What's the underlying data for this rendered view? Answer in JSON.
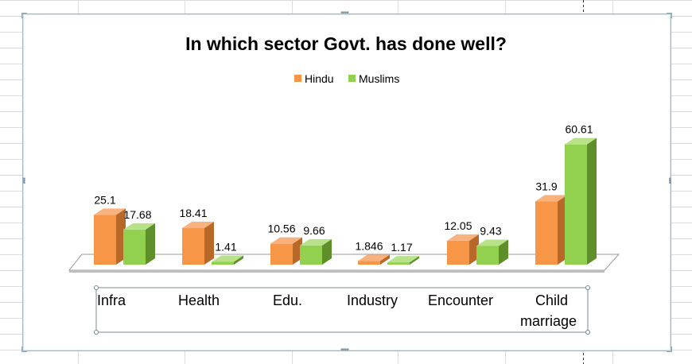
{
  "chart_data": {
    "type": "bar",
    "title": "In which sector  Govt. has done well?",
    "categories": [
      "Infra",
      "Health",
      "Edu.",
      "Industry",
      "Encounter",
      "Child marriage"
    ],
    "series": [
      {
        "name": "Hindu",
        "values": [
          25.1,
          18.41,
          10.56,
          1.846,
          12.05,
          31.9
        ]
      },
      {
        "name": "Muslims",
        "values": [
          17.68,
          1.41,
          9.66,
          1.17,
          9.43,
          60.61
        ]
      }
    ],
    "value_labels": [
      [
        "25.1",
        "18.41",
        "10.56",
        "1.846",
        "12.05",
        "31.9"
      ],
      [
        "17.68",
        "1.41",
        "9.66",
        "1.17",
        "9.43",
        "60.61"
      ]
    ],
    "ylim": [
      0,
      65
    ],
    "legend_position": "top",
    "grid": false,
    "style": "3d-column"
  },
  "colors": {
    "hindu": "#f79646",
    "muslims": "#92d050"
  }
}
